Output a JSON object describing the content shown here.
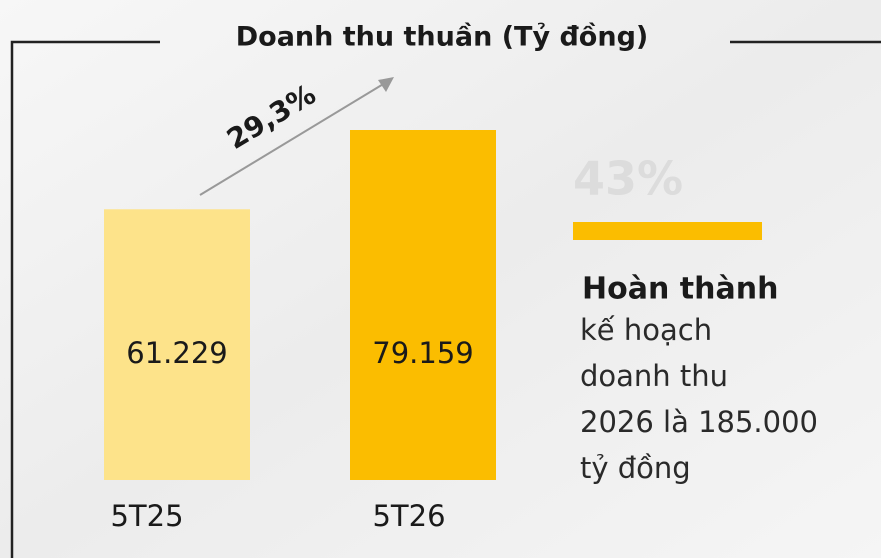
{
  "chart_data": {
    "type": "bar",
    "title": "Doanh thu thuần (Tỷ đồng)",
    "categories": [
      "5T25",
      "5T26"
    ],
    "values": [
      61229,
      79159
    ],
    "value_labels": [
      "61.229",
      "79.159"
    ],
    "colors": [
      "#fde38a",
      "#fbbd00"
    ],
    "annotation": "29,3%",
    "highlight": "43%",
    "note_title": "Hoàn thành",
    "note_lines": [
      "kế hoạch",
      "doanh thu",
      "2026 là 185.000",
      "tỷ đồng"
    ]
  }
}
